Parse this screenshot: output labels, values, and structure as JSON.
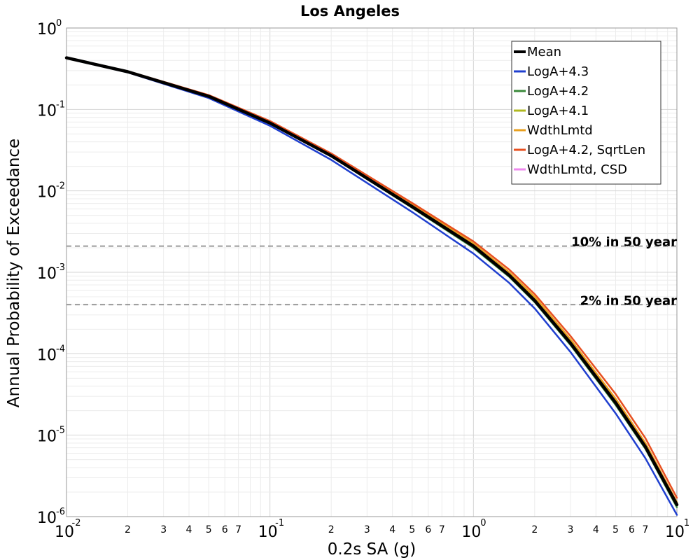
{
  "chart_data": {
    "type": "line",
    "title": "Los Angeles",
    "xlabel": "0.2s SA (g)",
    "ylabel": "Annual Probability of Exceedance",
    "xscale": "log",
    "yscale": "log",
    "xlim": [
      0.01,
      10
    ],
    "ylim": [
      1e-06,
      1
    ],
    "grid": true,
    "legend_position": "top-right",
    "x_major_ticks": [
      {
        "value": 0.01,
        "base": "10",
        "exp": "-2"
      },
      {
        "value": 0.1,
        "base": "10",
        "exp": "-1"
      },
      {
        "value": 1,
        "base": "10",
        "exp": "0"
      },
      {
        "value": 10,
        "base": "10",
        "exp": "1"
      }
    ],
    "x_minor_tick_labels": [
      "2",
      "3",
      "4",
      "5",
      "6",
      "7"
    ],
    "y_major_ticks": [
      {
        "value": 1,
        "base": "10",
        "exp": "0"
      },
      {
        "value": 0.1,
        "base": "10",
        "exp": "-1"
      },
      {
        "value": 0.01,
        "base": "10",
        "exp": "-2"
      },
      {
        "value": 0.001,
        "base": "10",
        "exp": "-3"
      },
      {
        "value": 0.0001,
        "base": "10",
        "exp": "-4"
      },
      {
        "value": 1e-05,
        "base": "10",
        "exp": "-5"
      },
      {
        "value": 1e-06,
        "base": "10",
        "exp": "-6"
      }
    ],
    "annotations": [
      {
        "text": "10% in 50 year",
        "y": 0.0021
      },
      {
        "text": "2% in 50 year",
        "y": 0.0004
      }
    ],
    "x": [
      0.01,
      0.02,
      0.05,
      0.1,
      0.2,
      0.5,
      1,
      1.5,
      2,
      3,
      5,
      7,
      10
    ],
    "series": [
      {
        "name": "Mean",
        "color": "#000000",
        "width": 4.5,
        "values": [
          0.43,
          0.29,
          0.145,
          0.068,
          0.027,
          0.0064,
          0.0021,
          0.00092,
          0.00045,
          0.000135,
          2.5e-05,
          7.2e-06,
          1.4e-06
        ]
      },
      {
        "name": "LogA+4.3",
        "color": "#1f3fcf",
        "width": 2.5,
        "values": [
          0.425,
          0.285,
          0.138,
          0.063,
          0.024,
          0.0055,
          0.0017,
          0.00074,
          0.00036,
          0.000105,
          1.85e-05,
          5.2e-06,
          1.05e-06
        ]
      },
      {
        "name": "LogA+4.2",
        "color": "#3a8a3a",
        "width": 2.5,
        "values": [
          0.43,
          0.29,
          0.144,
          0.067,
          0.0265,
          0.0062,
          0.002,
          0.00088,
          0.00043,
          0.000128,
          2.35e-05,
          6.8e-06,
          1.3e-06
        ]
      },
      {
        "name": "LogA+4.1",
        "color": "#b0b820",
        "width": 2.5,
        "values": [
          0.432,
          0.292,
          0.147,
          0.069,
          0.0275,
          0.0066,
          0.00215,
          0.00095,
          0.00047,
          0.00014,
          2.6e-05,
          7.5e-06,
          1.45e-06
        ]
      },
      {
        "name": "WdthLmtd",
        "color": "#e8a020",
        "width": 2.5,
        "values": [
          0.434,
          0.294,
          0.149,
          0.071,
          0.0285,
          0.0069,
          0.00225,
          0.001,
          0.0005,
          0.00015,
          2.8e-05,
          8e-06,
          1.5e-06
        ]
      },
      {
        "name": "LogA+4.2, SqrtLen",
        "color": "#e85020",
        "width": 2.5,
        "values": [
          0.434,
          0.294,
          0.15,
          0.072,
          0.0288,
          0.0071,
          0.0024,
          0.00108,
          0.00054,
          0.000165,
          3.2e-05,
          9.2e-06,
          1.7e-06
        ]
      },
      {
        "name": "WdthLmtd, CSD",
        "color": "#ee88ee",
        "width": 2.5,
        "values": [
          0.43,
          0.29,
          0.145,
          0.068,
          0.027,
          0.0064,
          0.0021,
          0.00092,
          0.00045,
          0.000135,
          2.5e-05,
          7.2e-06,
          1.4e-06
        ]
      }
    ]
  }
}
